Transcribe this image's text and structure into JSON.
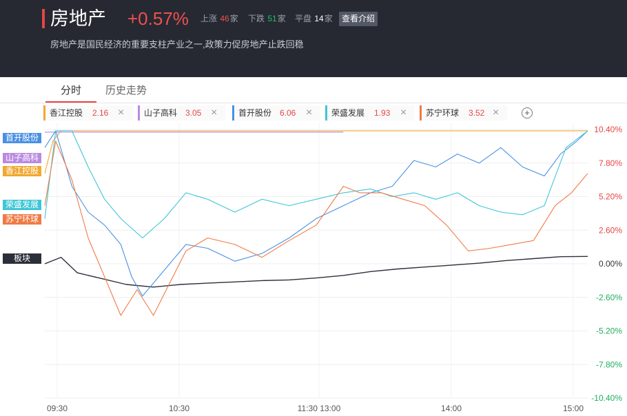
{
  "header": {
    "name": "房地产",
    "change": "+0.57%",
    "rise_label": "上涨",
    "rise_count": "46",
    "fall_label": "下跌",
    "fall_count": "51",
    "flat_label": "平盘",
    "flat_count": "14",
    "unit": "家",
    "intro_button": "查看介绍",
    "description": "房地产是国民经济的重要支柱产业之一,政策力促房地产止跌回稳"
  },
  "tabs": {
    "intraday": "分时",
    "history": "历史走势"
  },
  "stock_tabs": [
    {
      "name": "香江控股",
      "value": "2.16",
      "color": "#f0a830"
    },
    {
      "name": "山子高科",
      "value": "3.05",
      "color": "#b98ae0"
    },
    {
      "name": "首开股份",
      "value": "6.06",
      "color": "#4a90e2"
    },
    {
      "name": "荣盛发展",
      "value": "1.93",
      "color": "#3ec6d6"
    },
    {
      "name": "苏宁环球",
      "value": "3.52",
      "color": "#f07a45"
    }
  ],
  "side_labels": [
    {
      "name": "首开股份",
      "color": "#4a90e2"
    },
    {
      "name": "山子高科",
      "color": "#b98ae0"
    },
    {
      "name": "香江控股",
      "color": "#f0a830"
    },
    {
      "name": "荣盛发展",
      "color": "#3ec6d6"
    },
    {
      "name": "苏宁环球",
      "color": "#f07a45"
    },
    {
      "name": "板块",
      "color": "#2b2f3a"
    }
  ],
  "chart_data": {
    "type": "line",
    "y_ticks": [
      "10.40%",
      "7.80%",
      "5.20%",
      "2.60%",
      "0.00%",
      "-2.60%",
      "-5.20%",
      "-7.80%",
      "-10.40%"
    ],
    "ylim": [
      -10.4,
      10.4
    ],
    "x_ticks": [
      "09:30",
      "10:30",
      "11:30 13:00",
      "14:00",
      "15:00"
    ],
    "grid": true,
    "colors": {
      "up": "#e64545",
      "down": "#1fae5e",
      "zero": "#333333"
    },
    "series": [
      {
        "name": "板块",
        "color": "#2b2f3a",
        "points": [
          [
            0,
            0
          ],
          [
            0.03,
            0.5
          ],
          [
            0.06,
            -0.7
          ],
          [
            0.1,
            -1.1
          ],
          [
            0.15,
            -1.6
          ],
          [
            0.2,
            -1.8
          ],
          [
            0.25,
            -1.6
          ],
          [
            0.3,
            -1.5
          ],
          [
            0.35,
            -1.4
          ],
          [
            0.4,
            -1.3
          ],
          [
            0.45,
            -1.25
          ],
          [
            0.5,
            -1.1
          ],
          [
            0.55,
            -0.9
          ],
          [
            0.6,
            -0.6
          ],
          [
            0.65,
            -0.4
          ],
          [
            0.7,
            -0.25
          ],
          [
            0.75,
            -0.1
          ],
          [
            0.8,
            0.05
          ],
          [
            0.85,
            0.25
          ],
          [
            0.9,
            0.4
          ],
          [
            0.95,
            0.55
          ],
          [
            1,
            0.57
          ]
        ]
      },
      {
        "name": "香江控股",
        "color": "#f0a830",
        "points": [
          [
            0,
            7.0
          ],
          [
            0.015,
            9.5
          ],
          [
            0.03,
            10.3
          ],
          [
            1,
            10.3
          ]
        ]
      },
      {
        "name": "山子高科",
        "color": "#b98ae0",
        "points": [
          [
            0,
            10.2
          ],
          [
            0.55,
            10.2
          ]
        ]
      },
      {
        "name": "首开股份",
        "color": "#4a90e2",
        "points": [
          [
            0,
            9.0
          ],
          [
            0.02,
            10.3
          ],
          [
            0.05,
            6.0
          ],
          [
            0.08,
            4.0
          ],
          [
            0.11,
            3.0
          ],
          [
            0.14,
            1.5
          ],
          [
            0.16,
            -1.0
          ],
          [
            0.18,
            -2.5
          ],
          [
            0.2,
            -1.5
          ],
          [
            0.23,
            0.0
          ],
          [
            0.26,
            1.5
          ],
          [
            0.3,
            1.2
          ],
          [
            0.35,
            0.2
          ],
          [
            0.4,
            0.8
          ],
          [
            0.45,
            2.0
          ],
          [
            0.5,
            3.5
          ],
          [
            0.55,
            4.5
          ],
          [
            0.6,
            5.5
          ],
          [
            0.64,
            6.0
          ],
          [
            0.68,
            8.0
          ],
          [
            0.72,
            7.5
          ],
          [
            0.76,
            8.5
          ],
          [
            0.8,
            7.8
          ],
          [
            0.84,
            9.0
          ],
          [
            0.88,
            7.5
          ],
          [
            0.92,
            6.8
          ],
          [
            0.95,
            8.5
          ],
          [
            0.98,
            9.5
          ],
          [
            1,
            10.3
          ]
        ]
      },
      {
        "name": "荣盛发展",
        "color": "#3ec6d6",
        "points": [
          [
            0,
            3.5
          ],
          [
            0.02,
            10.3
          ],
          [
            0.05,
            10.3
          ],
          [
            0.08,
            7.5
          ],
          [
            0.11,
            5.0
          ],
          [
            0.14,
            3.5
          ],
          [
            0.18,
            2.0
          ],
          [
            0.22,
            3.5
          ],
          [
            0.26,
            5.5
          ],
          [
            0.3,
            5.0
          ],
          [
            0.35,
            4.0
          ],
          [
            0.4,
            5.0
          ],
          [
            0.45,
            4.5
          ],
          [
            0.5,
            5.0
          ],
          [
            0.55,
            5.5
          ],
          [
            0.6,
            5.8
          ],
          [
            0.64,
            5.2
          ],
          [
            0.68,
            5.5
          ],
          [
            0.72,
            5.0
          ],
          [
            0.76,
            5.5
          ],
          [
            0.8,
            4.5
          ],
          [
            0.84,
            4.0
          ],
          [
            0.88,
            3.8
          ],
          [
            0.92,
            4.5
          ],
          [
            0.96,
            9.0
          ],
          [
            1,
            10.3
          ]
        ]
      },
      {
        "name": "苏宁环球",
        "color": "#f07a45",
        "points": [
          [
            0,
            4.5
          ],
          [
            0.02,
            9.5
          ],
          [
            0.05,
            6.5
          ],
          [
            0.08,
            2.0
          ],
          [
            0.11,
            -1.0
          ],
          [
            0.14,
            -4.0
          ],
          [
            0.17,
            -2.0
          ],
          [
            0.2,
            -4.0
          ],
          [
            0.23,
            -1.5
          ],
          [
            0.26,
            1.0
          ],
          [
            0.3,
            2.0
          ],
          [
            0.35,
            1.5
          ],
          [
            0.4,
            0.5
          ],
          [
            0.45,
            1.8
          ],
          [
            0.5,
            3.0
          ],
          [
            0.55,
            6.0
          ],
          [
            0.58,
            5.5
          ],
          [
            0.62,
            5.5
          ],
          [
            0.66,
            5.0
          ],
          [
            0.7,
            4.5
          ],
          [
            0.74,
            3.0
          ],
          [
            0.78,
            1.0
          ],
          [
            0.82,
            1.2
          ],
          [
            0.86,
            1.5
          ],
          [
            0.9,
            1.8
          ],
          [
            0.94,
            4.5
          ],
          [
            0.97,
            5.5
          ],
          [
            1,
            7.0
          ]
        ]
      }
    ]
  }
}
